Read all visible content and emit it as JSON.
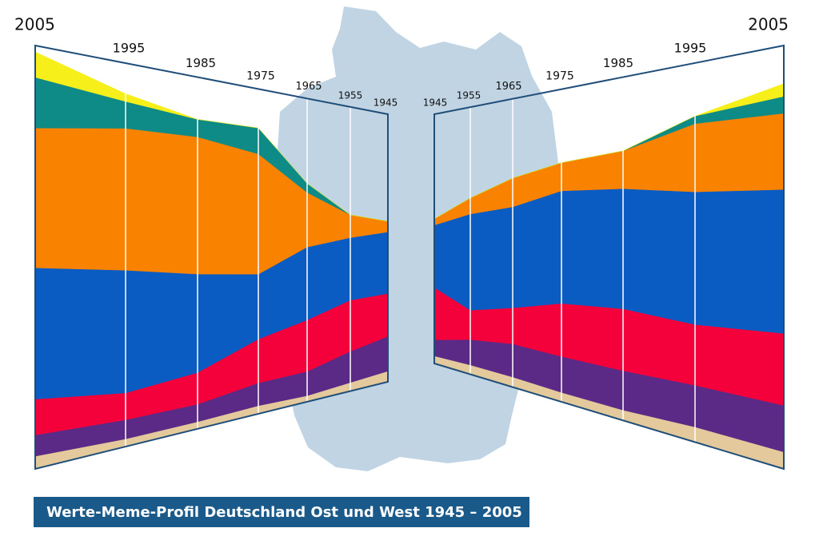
{
  "title": "Werte-Meme-Profil Deutschland Ost und West 1945 – 2005",
  "chart_data": [
    {
      "type": "stacked-area",
      "categories": [
        "2005",
        "1995",
        "1985",
        "1975",
        "1965",
        "1955",
        "1945"
      ],
      "ylim": [
        0,
        100
      ],
      "series": [
        {
          "color": "#e3c99b",
          "values": [
            3,
            2,
            2,
            2.5,
            2,
            3,
            4
          ]
        },
        {
          "color": "#5b2a86",
          "values": [
            5,
            5,
            5,
            7,
            8,
            11,
            13
          ]
        },
        {
          "color": "#f4003a",
          "values": [
            8.5,
            7,
            9,
            13.5,
            17,
            18,
            16
          ]
        },
        {
          "color": "#0a5cc2",
          "values": [
            31,
            32,
            28,
            20,
            24,
            22,
            23
          ]
        },
        {
          "color": "#f98200",
          "values": [
            33,
            37,
            39,
            37,
            18,
            8,
            4
          ]
        },
        {
          "color": "#0e8a87",
          "values": [
            12,
            7,
            5,
            8,
            3,
            0,
            0
          ]
        },
        {
          "color": "#f6ef1a",
          "values": [
            6,
            2,
            0,
            0,
            0,
            0,
            0
          ]
        }
      ]
    },
    {
      "type": "stacked-area",
      "categories": [
        "1945",
        "1955",
        "1965",
        "1975",
        "1985",
        "1995",
        "2005"
      ],
      "ylim": [
        0,
        100
      ],
      "series": [
        {
          "color": "#e3c99b",
          "values": [
            3,
            3.5,
            3.5,
            3,
            3,
            4,
            4
          ]
        },
        {
          "color": "#5b2a86",
          "values": [
            6.5,
            9.5,
            11.5,
            11.5,
            11.5,
            11,
            11
          ]
        },
        {
          "color": "#f4003a",
          "values": [
            21,
            11,
            12.5,
            17,
            18,
            16,
            17
          ]
        },
        {
          "color": "#0a5cc2",
          "values": [
            25,
            36,
            35,
            36,
            35,
            35,
            34
          ]
        },
        {
          "color": "#f98200",
          "values": [
            2.5,
            6,
            10,
            9,
            11,
            18,
            18
          ]
        },
        {
          "color": "#0e8a87",
          "values": [
            0,
            0,
            0,
            0,
            0,
            2,
            4
          ]
        },
        {
          "color": "#f6ef1a",
          "values": [
            0,
            0,
            0,
            0,
            0,
            0,
            3
          ]
        }
      ]
    }
  ]
}
